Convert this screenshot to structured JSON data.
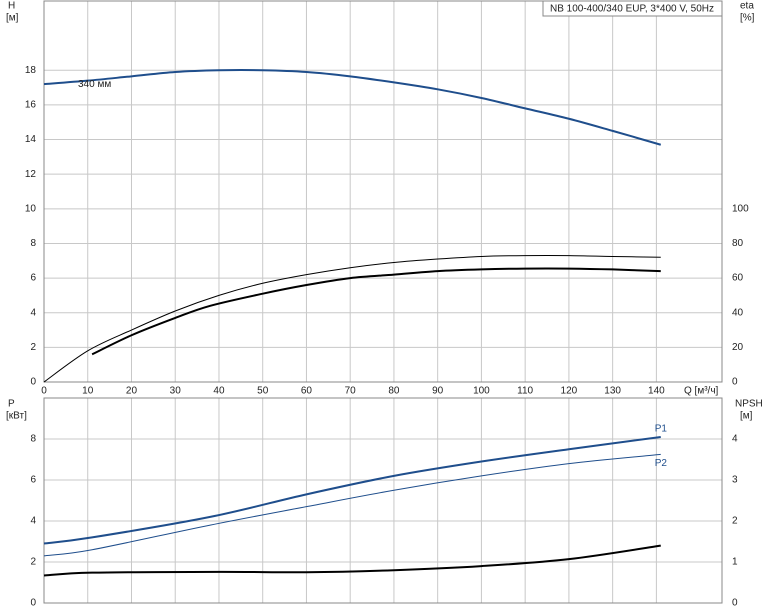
{
  "chart_data": [
    {
      "type": "line",
      "title": "NB 100-400/340 EUP, 3*400 V, 50Hz",
      "y_label": "H",
      "y_unit": "[м]",
      "y2_label": "eta",
      "y2_unit": "[%]",
      "x_label": "Q [м³/ч]",
      "xlim": [
        0,
        155
      ],
      "xticks": [
        0,
        10,
        20,
        30,
        40,
        50,
        60,
        70,
        80,
        90,
        100,
        110,
        120,
        130,
        140
      ],
      "ylim": [
        0,
        22
      ],
      "yticks": [
        0,
        2,
        4,
        6,
        8,
        10,
        12,
        14,
        16,
        18
      ],
      "y2lim": [
        0,
        220
      ],
      "y2ticks": [
        0,
        20,
        40,
        60,
        80,
        100
      ],
      "grid": true,
      "series": [
        {
          "name": "340 мм",
          "color": "#1f4e8c",
          "line_width": 2,
          "x": [
            0,
            10,
            20,
            30,
            40,
            50,
            60,
            70,
            80,
            90,
            100,
            110,
            120,
            130,
            141
          ],
          "values": [
            17.2,
            17.4,
            17.65,
            17.9,
            18.0,
            18.0,
            17.9,
            17.65,
            17.3,
            16.9,
            16.4,
            15.8,
            15.2,
            14.5,
            13.7
          ]
        },
        {
          "color": "#000000",
          "line_width": 1,
          "axis": "y2",
          "x": [
            0,
            10,
            20,
            30,
            40,
            50,
            60,
            70,
            80,
            90,
            100,
            110,
            120,
            130,
            141
          ],
          "values": [
            0,
            18,
            30,
            41,
            50,
            57,
            62,
            66,
            69,
            71,
            72.5,
            73,
            73,
            72.5,
            72
          ]
        },
        {
          "color": "#000000",
          "line_width": 2,
          "axis": "y2",
          "x": [
            11,
            20,
            30,
            38,
            50,
            60,
            70,
            80,
            90,
            100,
            110,
            120,
            130,
            141
          ],
          "values": [
            16,
            27,
            37,
            44,
            51,
            56,
            60,
            62,
            64,
            65,
            65.5,
            65.5,
            65,
            64
          ]
        }
      ]
    },
    {
      "type": "line",
      "y_label": "P",
      "y_unit": "[кВт]",
      "y2_label": "NPSH",
      "y2_unit": "[м]",
      "xlim": [
        0,
        155
      ],
      "ylim": [
        0,
        10
      ],
      "yticks": [
        0,
        2,
        4,
        6,
        8
      ],
      "y2lim": [
        0,
        5
      ],
      "y2ticks": [
        0,
        1,
        2,
        3,
        4
      ],
      "grid": true,
      "series": [
        {
          "name": "P1",
          "color": "#1f4e8c",
          "line_width": 2,
          "x": [
            0,
            11,
            38,
            60,
            80,
            100,
            120,
            141
          ],
          "values": [
            2.9,
            3.2,
            4.2,
            5.3,
            6.2,
            6.9,
            7.5,
            8.1
          ]
        },
        {
          "name": "P2",
          "color": "#1f4e8c",
          "line_width": 1,
          "x": [
            0,
            11,
            38,
            60,
            80,
            100,
            120,
            141
          ],
          "values": [
            2.3,
            2.6,
            3.8,
            4.7,
            5.5,
            6.2,
            6.8,
            7.25
          ]
        },
        {
          "color": "#000000",
          "line_width": 2,
          "axis": "y2",
          "x": [
            0,
            11,
            40,
            60,
            80,
            100,
            120,
            141
          ],
          "values": [
            0.67,
            0.74,
            0.76,
            0.75,
            0.8,
            0.9,
            1.07,
            1.4
          ]
        }
      ]
    }
  ]
}
